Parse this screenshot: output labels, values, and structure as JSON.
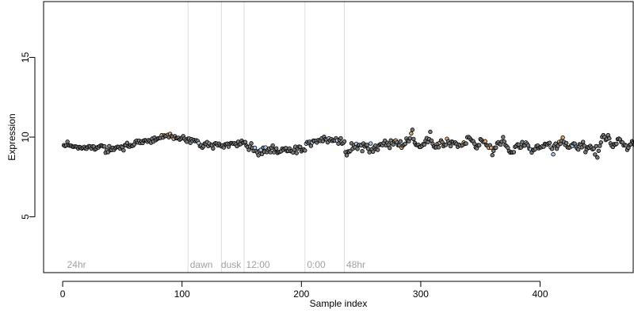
{
  "chart_data": {
    "type": "scatter",
    "title": "",
    "xlabel": "Sample index",
    "ylabel": "Expression",
    "xlim": [
      -16,
      478
    ],
    "ylim": [
      1.5,
      18.5
    ],
    "xticks": [
      0,
      100,
      200,
      300,
      400
    ],
    "yticks": [
      5,
      10,
      15
    ],
    "grid": false,
    "marker_fill_colors": {
      "default": "#7a7a7a",
      "orange": "#d9a86c",
      "blue": "#a9c9e8"
    },
    "marker_edge_color": "#000000",
    "reference_line_color": "#dcdcdc",
    "annotation_color": "#a0a0a0",
    "reference_lines": [
      105,
      133,
      152,
      203,
      236
    ],
    "annotations": [
      {
        "x": 3,
        "text": "24hr"
      },
      {
        "x": 106,
        "text": "dawn"
      },
      {
        "x": 132,
        "text": "dusk"
      },
      {
        "x": 153,
        "text": "12:00"
      },
      {
        "x": 204,
        "text": "0:00"
      },
      {
        "x": 237,
        "text": "48hr"
      }
    ],
    "points": {
      "x_start": 1,
      "x_step": 1,
      "y": [
        9.49,
        9.44,
        9.48,
        9.71,
        9.49,
        9.46,
        9.47,
        9.41,
        9.39,
        9.41,
        9.41,
        9.38,
        9.29,
        9.38,
        9.35,
        9.29,
        9.34,
        9.39,
        9.29,
        9.27,
        9.38,
        9.44,
        9.41,
        9.29,
        9.42,
        9.41,
        9.22,
        9.27,
        9.36,
        9.35,
        9.44,
        9.48,
        9.46,
        9.42,
        9.42,
        9.02,
        9.2,
        9.06,
        9.44,
        9.18,
        9.19,
        9.33,
        9.2,
        9.31,
        9.36,
        9.4,
        9.37,
        9.28,
        9.41,
        9.37,
        9.17,
        9.49,
        9.49,
        9.64,
        9.42,
        9.4,
        9.5,
        9.44,
        9.46,
        9.55,
        9.72,
        9.78,
        9.66,
        9.78,
        9.63,
        9.73,
        9.63,
        9.78,
        9.81,
        9.78,
        9.71,
        9.81,
        9.74,
        9.65,
        9.9,
        9.72,
        9.97,
        9.81,
        9.87,
        9.92,
        9.94,
        9.95,
        10.12,
        9.97,
        10.11,
        10.06,
        10.09,
        10.14,
        9.99,
        10.2,
        10.06,
        10.03,
        9.89,
        10.06,
        9.93,
        9.94,
        9.96,
        9.84,
        9.89,
        9.97,
        10.06,
        9.9,
        9.8,
        9.71,
        9.9,
        9.91,
        9.64,
        9.87,
        9.77,
        9.82,
        9.75,
        9.8,
        9.76,
        9.62,
        9.43,
        9.49,
        9.33,
        9.42,
        9.6,
        9.57,
        9.69,
        9.44,
        9.59,
        9.5,
        9.49,
        9.29,
        9.56,
        9.62,
        9.6,
        9.48,
        9.59,
        9.48,
        9.42,
        9.48,
        9.35,
        9.54,
        9.56,
        9.59,
        9.4,
        9.58,
        9.63,
        9.62,
        9.58,
        9.62,
        9.55,
        9.43,
        9.71,
        9.53,
        9.56,
        9.77,
        9.65,
        9.66,
        9.69,
        9.46,
        9.38,
        9.2,
        9.41,
        9.61,
        9.32,
        9.13,
        9.33,
        9.13,
        9.04,
        8.86,
        9.15,
        9.2,
        8.94,
        9.34,
        9.09,
        9.35,
        9.06,
        9.2,
        9.28,
        9.05,
        9.34,
        9.47,
        9.05,
        9.23,
        9.29,
        9.01,
        9.06,
        9.08,
        9.11,
        9.28,
        9.2,
        9.28,
        9.31,
        9.12,
        9.14,
        9.29,
        9.12,
        9.12,
        9.03,
        9.22,
        9.4,
        9.0,
        9.28,
        9.4,
        9.39,
        9.11,
        9.2,
        9.23,
        9.16,
        9.59,
        9.69,
        9.62,
        9.71,
        9.45,
        9.66,
        9.78,
        9.77,
        9.77,
        9.66,
        9.81,
        9.8,
        9.76,
        9.92,
        9.75,
        10.02,
        9.87,
        9.84,
        9.67,
        9.92,
        9.8,
        9.88,
        9.76,
        9.8,
        9.78,
        9.93,
        9.79,
        9.59,
        9.84,
        9.93,
        9.59,
        9.63,
        9.73,
        9.06,
        8.86,
        9.1,
        9.07,
        9.14,
        9.61,
        9.27,
        9.48,
        9.36,
        9.58,
        9.26,
        9.49,
        9.51,
        9.48,
        9.12,
        9.6,
        9.41,
        9.5,
        9.51,
        9.27,
        9.05,
        9.6,
        9.23,
        9.09,
        9.37,
        9.47,
        9.24,
        9.2,
        9.49,
        9.55,
        9.56,
        9.49,
        9.63,
        9.78,
        9.48,
        9.64,
        9.52,
        9.32,
        9.79,
        9.6,
        9.54,
        9.74,
        9.79,
        9.67,
        9.49,
        9.48,
        9.74,
        9.34,
        9.46,
        9.53,
        9.58,
        9.91,
        9.77,
        9.74,
        9.93,
        10.23,
        10.46,
        9.88,
        9.64,
        9.51,
        9.5,
        9.52,
        9.38,
        9.39,
        9.45,
        9.56,
        9.53,
        9.77,
        9.94,
        9.68,
        9.88,
        10.33,
        9.78,
        9.58,
        9.41,
        9.35,
        9.36,
        9.58,
        9.36,
        9.64,
        9.79,
        9.68,
        9.43,
        9.53,
        9.51,
        9.89,
        9.74,
        9.61,
        9.43,
        9.72,
        9.69,
        9.61,
        9.66,
        9.58,
        9.39,
        9.53,
        9.48,
        9.46,
        9.5,
        9.66,
        9.58,
        9.6,
        9.99,
        10.01,
        9.94,
        9.84,
        9.76,
        9.74,
        9.58,
        9.35,
        9.3,
        9.49,
        9.49,
        9.87,
        9.81,
        9.72,
        9.68,
        9.74,
        9.5,
        9.46,
        9.33,
        9.49,
        9.33,
        8.87,
        9.14,
        9.34,
        9.34,
        9.62,
        9.68,
        9.57,
        9.53,
        9.72,
        10.0,
        9.72,
        9.49,
        9.42,
        9.33,
        9.12,
        9.03,
        9.05,
        9.04,
        9.06,
        9.39,
        9.44,
        9.54,
        9.53,
        9.33,
        9.35,
        9.69,
        9.47,
        9.47,
        9.66,
        9.59,
        9.47,
        9.27,
        9.24,
        9.03,
        9.2,
        9.2,
        9.25,
        9.44,
        9.47,
        9.3,
        9.36,
        9.36,
        9.43,
        9.4,
        9.58,
        9.56,
        9.53,
        9.61,
        9.64,
        9.35,
        9.26,
        8.92,
        9.48,
        9.59,
        9.27,
        9.45,
        9.7,
        9.58,
        9.77,
        9.97,
        9.7,
        9.51,
        9.63,
        9.36,
        9.34,
        9.36,
        9.49,
        9.45,
        9.6,
        9.59,
        9.4,
        9.29,
        9.22,
        9.55,
        9.51,
        9.36,
        9.7,
        9.46,
        9.06,
        9.24,
        9.37,
        9.34,
        9.45,
        9.35,
        9.24,
        9.28,
        8.91,
        9.43,
        8.72,
        9.14,
        9.45,
        9.67,
        10.01,
        10.12,
        10.0,
        9.82,
        9.88,
        10.12,
        9.92,
        9.61,
        9.46,
        9.38,
        9.56,
        9.53,
        9.58,
        9.87,
        9.9,
        9.85,
        9.69,
        9.67,
        9.48,
        9.52,
        9.46,
        9.2,
        9.34,
        9.51,
        9.55,
        9.74,
        9.66,
        9.52,
        9.73,
        9.8,
        9.59,
        9.55,
        9.46,
        9.38,
        9.15,
        9.3,
        9.31,
        9.26,
        9.59,
        9.63,
        9.46,
        9.62,
        9.46,
        9.19
      ]
    },
    "orange_points": [
      83,
      87,
      90,
      93,
      276,
      279,
      284,
      292,
      300,
      316,
      322,
      334,
      336,
      339,
      354,
      357,
      359,
      416,
      419,
      424
    ],
    "blue_points": [
      109,
      114,
      123,
      161,
      166,
      170,
      204,
      209,
      211,
      214,
      223,
      230,
      246,
      249,
      258,
      333,
      388,
      392,
      402,
      409,
      411,
      427
    ]
  }
}
